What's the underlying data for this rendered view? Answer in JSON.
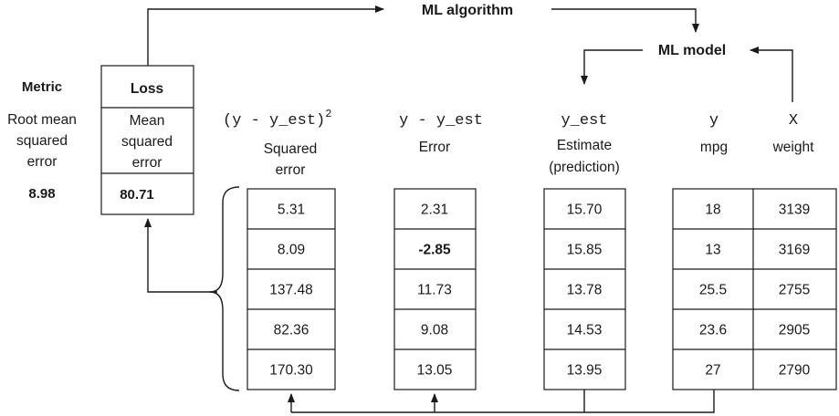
{
  "ml_algorithm": "ML algorithm",
  "ml_model": "ML model",
  "metric": {
    "title": "Metric",
    "lines": [
      "Root mean",
      "squared",
      "error"
    ],
    "value": "8.98"
  },
  "loss": {
    "title": "Loss",
    "lines": [
      "Mean",
      "squared",
      "error"
    ],
    "value": "80.71"
  },
  "squared_error": {
    "formula": "(y - y_est)",
    "exponent": "2",
    "label": [
      "Squared",
      "error"
    ],
    "values": [
      "5.31",
      "8.09",
      "137.48",
      "82.36",
      "170.30"
    ]
  },
  "error": {
    "formula": "y - y_est",
    "label": [
      "Error"
    ],
    "values": [
      "2.31",
      "-2.85",
      "11.73",
      "9.08",
      "13.05"
    ],
    "bold_index": 1
  },
  "estimate": {
    "formula": "y_est",
    "label": [
      "Estimate",
      "(prediction)"
    ],
    "values": [
      "15.70",
      "15.85",
      "13.78",
      "14.53",
      "13.95"
    ]
  },
  "y": {
    "formula": "y",
    "label": [
      "mpg"
    ],
    "values": [
      "18",
      "13",
      "25.5",
      "23.6",
      "27"
    ]
  },
  "x": {
    "formula": "X",
    "label": [
      "weight"
    ],
    "values": [
      "3139",
      "3169",
      "2755",
      "2905",
      "2790"
    ]
  }
}
